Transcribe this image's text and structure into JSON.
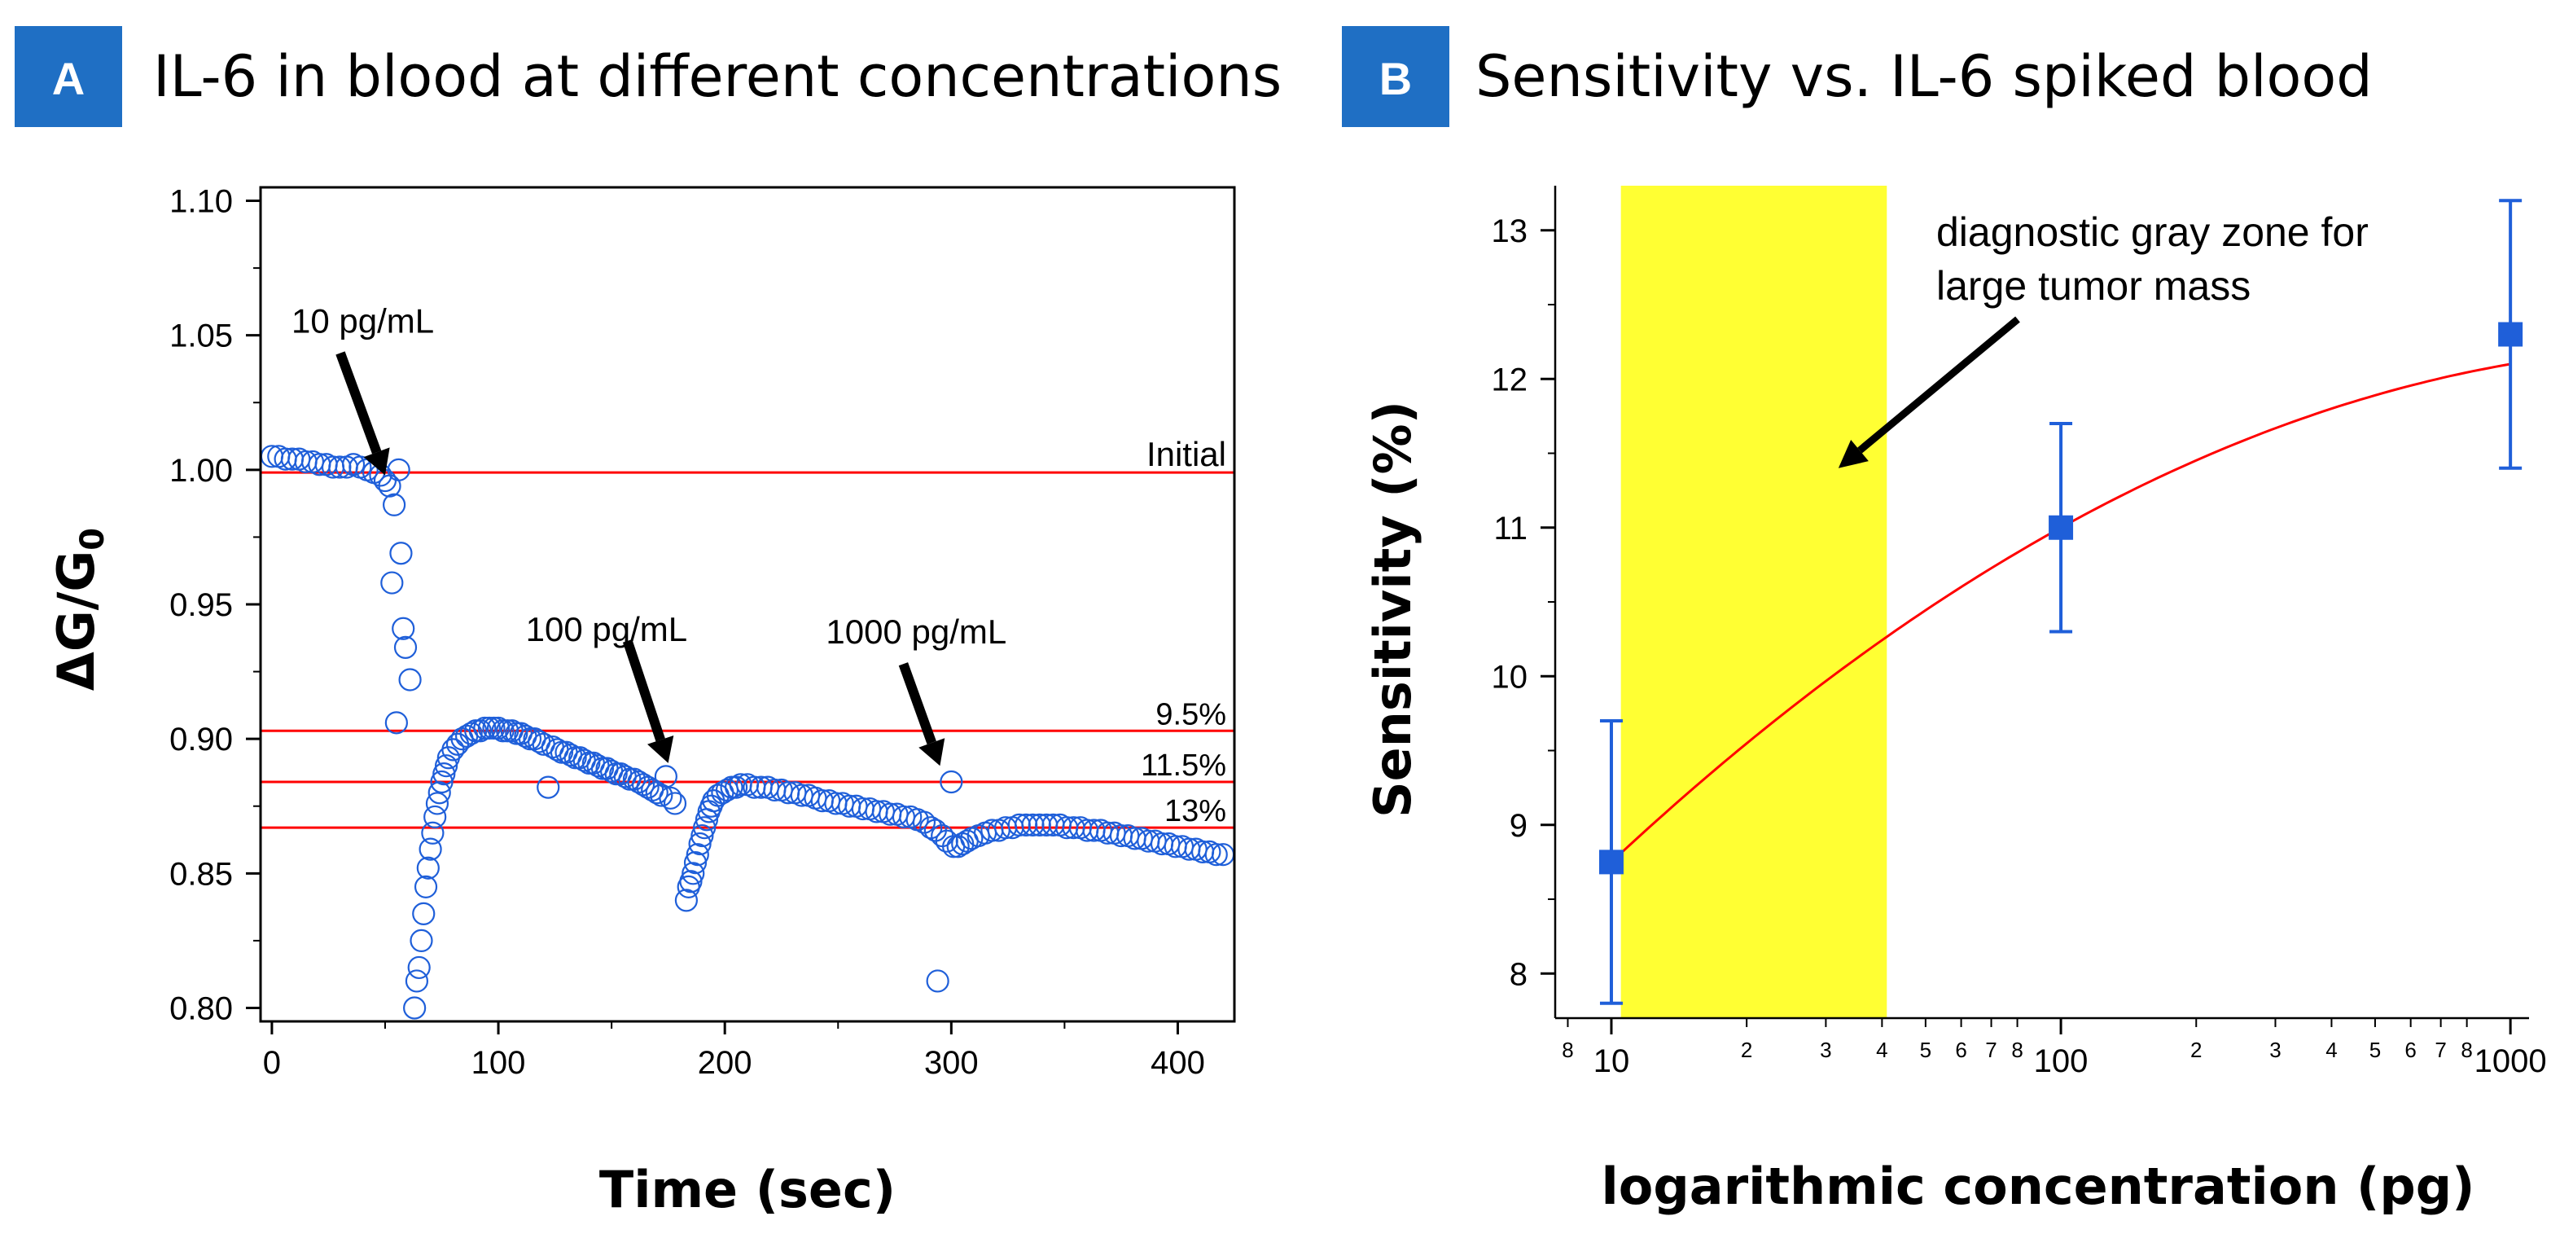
{
  "chart_data": [
    {
      "panel": "A",
      "type": "scatter",
      "title": "IL-6 in blood at different concentrations",
      "xlabel": "Time (sec)",
      "ylabel_main": "ΔG/G",
      "ylabel_sub": "0",
      "xlim": [
        -5,
        425
      ],
      "ylim": [
        0.795,
        1.105
      ],
      "xticks": [
        0,
        100,
        200,
        300,
        400
      ],
      "xtick_labels": [
        "0",
        "100",
        "200",
        "300",
        "400"
      ],
      "yticks": [
        0.8,
        0.85,
        0.9,
        0.95,
        1.0,
        1.05,
        1.1
      ],
      "ytick_labels": [
        "0.80",
        "0.85",
        "0.90",
        "0.95",
        "1.00",
        "1.05",
        "1.10"
      ],
      "marker_color": "#1F5FD9",
      "reference_lines": [
        {
          "label": "Initial",
          "y": 0.999
        },
        {
          "label": "9.5%",
          "y": 0.903
        },
        {
          "label": "11.5%",
          "y": 0.884
        },
        {
          "label": "13%",
          "y": 0.867
        }
      ],
      "annotations": [
        {
          "text": "10 pg/mL",
          "x": 50,
          "y": 0.998
        },
        {
          "text": "100 pg/mL",
          "x": 175,
          "y": 0.891
        },
        {
          "text": "1000 pg/mL",
          "x": 295,
          "y": 0.89
        }
      ],
      "series": [
        {
          "name": "ΔG/G0 data",
          "points": [
            [
              0,
              1.005
            ],
            [
              3,
              1.005
            ],
            [
              6,
              1.004
            ],
            [
              9,
              1.004
            ],
            [
              12,
              1.004
            ],
            [
              15,
              1.003
            ],
            [
              18,
              1.003
            ],
            [
              21,
              1.002
            ],
            [
              24,
              1.002
            ],
            [
              27,
              1.001
            ],
            [
              30,
              1.001
            ],
            [
              33,
              1.001
            ],
            [
              36,
              1.002
            ],
            [
              39,
              1.001
            ],
            [
              42,
              1.0
            ],
            [
              45,
              0.999
            ],
            [
              48,
              0.998
            ],
            [
              50,
              0.996
            ],
            [
              52,
              0.994
            ],
            [
              54,
              0.987
            ],
            [
              56,
              1.0
            ],
            [
              53,
              0.958
            ],
            [
              55,
              0.906
            ],
            [
              57,
              0.969
            ],
            [
              58,
              0.941
            ],
            [
              59,
              0.934
            ],
            [
              61,
              0.922
            ],
            [
              63,
              0.8
            ],
            [
              64,
              0.81
            ],
            [
              65,
              0.815
            ],
            [
              66,
              0.825
            ],
            [
              67,
              0.835
            ],
            [
              68,
              0.845
            ],
            [
              69,
              0.852
            ],
            [
              70,
              0.859
            ],
            [
              71,
              0.865
            ],
            [
              72,
              0.871
            ],
            [
              73,
              0.876
            ],
            [
              74,
              0.88
            ],
            [
              75,
              0.884
            ],
            [
              76,
              0.887
            ],
            [
              77,
              0.89
            ],
            [
              78,
              0.893
            ],
            [
              80,
              0.896
            ],
            [
              82,
              0.898
            ],
            [
              84,
              0.9
            ],
            [
              86,
              0.901
            ],
            [
              88,
              0.902
            ],
            [
              90,
              0.903
            ],
            [
              92,
              0.903
            ],
            [
              94,
              0.904
            ],
            [
              96,
              0.904
            ],
            [
              98,
              0.904
            ],
            [
              100,
              0.904
            ],
            [
              102,
              0.903
            ],
            [
              104,
              0.903
            ],
            [
              106,
              0.903
            ],
            [
              108,
              0.902
            ],
            [
              110,
              0.902
            ],
            [
              112,
              0.901
            ],
            [
              114,
              0.9
            ],
            [
              116,
              0.9
            ],
            [
              118,
              0.899
            ],
            [
              120,
              0.898
            ],
            [
              122,
              0.882
            ],
            [
              124,
              0.897
            ],
            [
              126,
              0.896
            ],
            [
              128,
              0.895
            ],
            [
              130,
              0.895
            ],
            [
              132,
              0.894
            ],
            [
              134,
              0.893
            ],
            [
              136,
              0.893
            ],
            [
              138,
              0.892
            ],
            [
              140,
              0.891
            ],
            [
              142,
              0.891
            ],
            [
              144,
              0.89
            ],
            [
              146,
              0.889
            ],
            [
              148,
              0.889
            ],
            [
              150,
              0.888
            ],
            [
              152,
              0.887
            ],
            [
              154,
              0.887
            ],
            [
              156,
              0.886
            ],
            [
              158,
              0.885
            ],
            [
              160,
              0.885
            ],
            [
              162,
              0.884
            ],
            [
              164,
              0.883
            ],
            [
              166,
              0.882
            ],
            [
              168,
              0.881
            ],
            [
              170,
              0.88
            ],
            [
              172,
              0.879
            ],
            [
              174,
              0.886
            ],
            [
              176,
              0.878
            ],
            [
              178,
              0.876
            ],
            [
              183,
              0.84
            ],
            [
              184,
              0.845
            ],
            [
              185,
              0.847
            ],
            [
              186,
              0.85
            ],
            [
              187,
              0.854
            ],
            [
              188,
              0.857
            ],
            [
              189,
              0.861
            ],
            [
              190,
              0.864
            ],
            [
              191,
              0.867
            ],
            [
              192,
              0.87
            ],
            [
              193,
              0.873
            ],
            [
              194,
              0.875
            ],
            [
              195,
              0.877
            ],
            [
              197,
              0.879
            ],
            [
              199,
              0.88
            ],
            [
              201,
              0.881
            ],
            [
              203,
              0.882
            ],
            [
              205,
              0.882
            ],
            [
              207,
              0.883
            ],
            [
              210,
              0.883
            ],
            [
              213,
              0.882
            ],
            [
              216,
              0.882
            ],
            [
              219,
              0.882
            ],
            [
              222,
              0.881
            ],
            [
              225,
              0.881
            ],
            [
              228,
              0.88
            ],
            [
              231,
              0.88
            ],
            [
              234,
              0.879
            ],
            [
              237,
              0.879
            ],
            [
              240,
              0.878
            ],
            [
              243,
              0.877
            ],
            [
              246,
              0.877
            ],
            [
              249,
              0.876
            ],
            [
              252,
              0.876
            ],
            [
              255,
              0.875
            ],
            [
              258,
              0.875
            ],
            [
              261,
              0.874
            ],
            [
              264,
              0.874
            ],
            [
              267,
              0.873
            ],
            [
              270,
              0.873
            ],
            [
              273,
              0.872
            ],
            [
              276,
              0.872
            ],
            [
              279,
              0.871
            ],
            [
              282,
              0.871
            ],
            [
              285,
              0.87
            ],
            [
              288,
              0.869
            ],
            [
              291,
              0.867
            ],
            [
              293,
              0.866
            ],
            [
              294,
              0.81
            ],
            [
              296,
              0.864
            ],
            [
              298,
              0.862
            ],
            [
              300,
              0.884
            ],
            [
              301,
              0.86
            ],
            [
              303,
              0.86
            ],
            [
              305,
              0.861
            ],
            [
              307,
              0.862
            ],
            [
              309,
              0.863
            ],
            [
              312,
              0.864
            ],
            [
              315,
              0.865
            ],
            [
              318,
              0.866
            ],
            [
              321,
              0.866
            ],
            [
              324,
              0.867
            ],
            [
              327,
              0.867
            ],
            [
              330,
              0.868
            ],
            [
              333,
              0.868
            ],
            [
              336,
              0.868
            ],
            [
              339,
              0.868
            ],
            [
              342,
              0.868
            ],
            [
              345,
              0.868
            ],
            [
              348,
              0.868
            ],
            [
              351,
              0.867
            ],
            [
              354,
              0.867
            ],
            [
              357,
              0.867
            ],
            [
              360,
              0.866
            ],
            [
              363,
              0.866
            ],
            [
              366,
              0.866
            ],
            [
              369,
              0.865
            ],
            [
              372,
              0.865
            ],
            [
              375,
              0.864
            ],
            [
              378,
              0.864
            ],
            [
              381,
              0.863
            ],
            [
              384,
              0.863
            ],
            [
              387,
              0.862
            ],
            [
              390,
              0.862
            ],
            [
              393,
              0.861
            ],
            [
              396,
              0.861
            ],
            [
              399,
              0.86
            ],
            [
              402,
              0.86
            ],
            [
              405,
              0.859
            ],
            [
              408,
              0.859
            ],
            [
              411,
              0.858
            ],
            [
              414,
              0.858
            ],
            [
              417,
              0.857
            ],
            [
              420,
              0.857
            ]
          ]
        }
      ]
    },
    {
      "panel": "B",
      "type": "scatter",
      "title": "Sensitivity vs. IL-6 spiked blood",
      "xlabel": "logarithmic concentration (pg)",
      "ylabel": "Sensitivity (%)",
      "xscale": "log",
      "xlim": [
        7.5,
        1100
      ],
      "ylim": [
        7.7,
        13.3
      ],
      "yticks": [
        8,
        9,
        10,
        11,
        12,
        13
      ],
      "ytick_labels": [
        "8",
        "9",
        "10",
        "11",
        "12",
        "13"
      ],
      "xticks_major": [
        10,
        100,
        1000
      ],
      "xtick_major_labels": [
        "10",
        "100",
        "1000"
      ],
      "xticks_minor": [
        8,
        20,
        30,
        40,
        50,
        60,
        70,
        80,
        200,
        300,
        400,
        500,
        600,
        700,
        800
      ],
      "xtick_minor_labels": [
        "8",
        "2",
        "3",
        "4",
        "5",
        "6",
        "7",
        "8",
        "2",
        "3",
        "4",
        "5",
        "6",
        "7",
        "8"
      ],
      "x": [
        10,
        100,
        1000
      ],
      "y": [
        8.75,
        11.0,
        12.3
      ],
      "yerr_low": [
        7.8,
        10.3,
        11.4
      ],
      "yerr_high": [
        9.7,
        11.7,
        13.2
      ],
      "fit": {
        "type": "quadratic in log10(x)",
        "a": 8.75,
        "b": 2.825,
        "c": -0.575
      },
      "gray_zone": {
        "x_range": [
          10.5,
          41
        ],
        "label": "diagnostic gray zone for large tumor mass"
      },
      "note_lines": [
        "diagnostic gray zone for",
        "large tumor mass"
      ],
      "arrow_target": {
        "x": 32,
        "y": 11.4
      },
      "marker_color": "#1F5FD9",
      "fit_color": "#FF0000",
      "zone_color": "#FFFF33"
    }
  ],
  "panel_badges": {
    "a": "A",
    "b": "B",
    "color": "#1F6FC4"
  }
}
